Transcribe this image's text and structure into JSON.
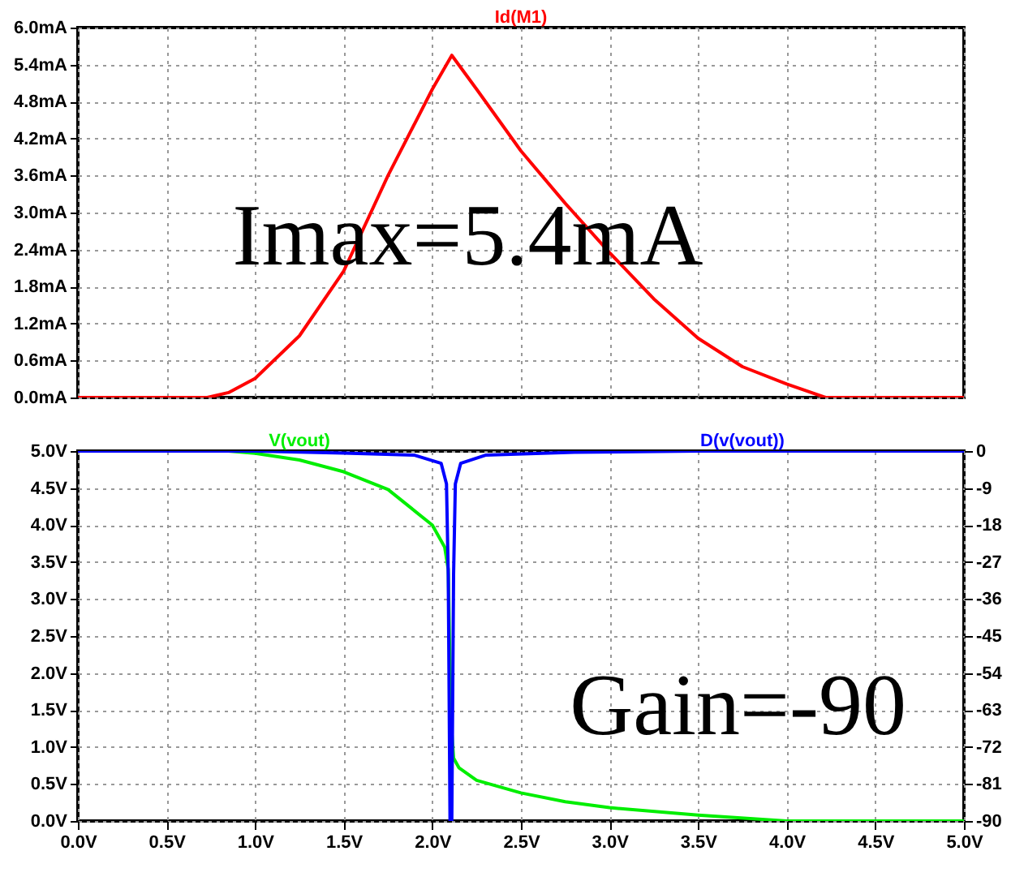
{
  "chart_data": [
    {
      "type": "line",
      "title": null,
      "annotations": [
        "Imax=5.4mA"
      ],
      "xlim": [
        0,
        5
      ],
      "xticks": [
        0,
        0.5,
        1,
        1.5,
        2,
        2.5,
        3,
        3.5,
        4,
        4.5,
        5
      ],
      "ylim": [
        0,
        6
      ],
      "yticks": [
        {
          "value": 0,
          "label": "0.0mA"
        },
        {
          "value": 0.6,
          "label": "0.6mA"
        },
        {
          "value": 1.2,
          "label": "1.2mA"
        },
        {
          "value": 1.8,
          "label": "1.8mA"
        },
        {
          "value": 2.4,
          "label": "2.4mA"
        },
        {
          "value": 3,
          "label": "3.0mA"
        },
        {
          "value": 3.6,
          "label": "3.6mA"
        },
        {
          "value": 4.2,
          "label": "4.2mA"
        },
        {
          "value": 4.8,
          "label": "4.8mA"
        },
        {
          "value": 5.4,
          "label": "5.4mA"
        },
        {
          "value": 6,
          "label": "6.0mA"
        }
      ],
      "tick_labels": "y",
      "grid": true,
      "line_style": "solid",
      "series": [
        {
          "name": "Id(M1)",
          "color": "#ff0000",
          "x": [
            0,
            0.5,
            0.73,
            0.85,
            1.0,
            1.25,
            1.5,
            1.75,
            2.0,
            2.11,
            2.25,
            2.5,
            2.75,
            3.0,
            3.25,
            3.5,
            3.75,
            4.0,
            4.22,
            4.5,
            5.0
          ],
          "values": [
            0,
            0,
            0,
            0.08,
            0.31,
            1.0,
            2.05,
            3.6,
            5.0,
            5.55,
            5.0,
            4.0,
            3.15,
            2.35,
            1.6,
            0.96,
            0.5,
            0.22,
            0,
            0,
            0
          ]
        }
      ]
    },
    {
      "type": "line",
      "annotations": [
        "Gain=-90"
      ],
      "xlim": [
        0,
        5
      ],
      "xticks": [
        {
          "value": 0,
          "label": "0.0V"
        },
        {
          "value": 0.5,
          "label": "0.5V"
        },
        {
          "value": 1,
          "label": "1.0V"
        },
        {
          "value": 1.5,
          "label": "1.5V"
        },
        {
          "value": 2,
          "label": "2.0V"
        },
        {
          "value": 2.5,
          "label": "2.5V"
        },
        {
          "value": 3,
          "label": "3.0V"
        },
        {
          "value": 3.5,
          "label": "3.5V"
        },
        {
          "value": 4,
          "label": "4.0V"
        },
        {
          "value": 4.5,
          "label": "4.5V"
        },
        {
          "value": 5,
          "label": "5.0V"
        }
      ],
      "ylim": [
        0,
        5
      ],
      "yticks": [
        {
          "value": 0,
          "label": "0.0V"
        },
        {
          "value": 0.5,
          "label": "0.5V"
        },
        {
          "value": 1,
          "label": "1.0V"
        },
        {
          "value": 1.5,
          "label": "1.5V"
        },
        {
          "value": 2,
          "label": "2.0V"
        },
        {
          "value": 2.5,
          "label": "2.5V"
        },
        {
          "value": 3,
          "label": "3.0V"
        },
        {
          "value": 3.5,
          "label": "3.5V"
        },
        {
          "value": 4,
          "label": "4.0V"
        },
        {
          "value": 4.5,
          "label": "4.5V"
        },
        {
          "value": 5,
          "label": "5.0V"
        }
      ],
      "y2lim": [
        -90,
        0
      ],
      "y2ticks": [
        -90,
        -81,
        -72,
        -63,
        -54,
        -45,
        -36,
        -27,
        -18,
        -9,
        0
      ],
      "grid": true,
      "line_style": "solid",
      "series": [
        {
          "name": "V(vout)",
          "color": "#00ee00",
          "x": [
            0,
            0.85,
            1.0,
            1.25,
            1.5,
            1.75,
            2.0,
            2.07,
            2.09,
            2.1,
            2.11,
            2.12,
            2.15,
            2.25,
            2.5,
            2.75,
            3.0,
            3.5,
            4.0,
            5.0
          ],
          "values": [
            5,
            5,
            4.97,
            4.88,
            4.72,
            4.48,
            4.0,
            3.7,
            3.4,
            2.0,
            1.2,
            0.85,
            0.72,
            0.55,
            0.38,
            0.26,
            0.18,
            0.08,
            0,
            0
          ]
        },
        {
          "name": "D(v(vout))",
          "color": "#0000ff",
          "axis": "y2",
          "x": [
            0,
            1.0,
            1.5,
            1.9,
            2.05,
            2.08,
            2.09,
            2.1,
            2.11,
            2.12,
            2.13,
            2.16,
            2.3,
            2.8,
            3.5,
            5.0
          ],
          "values": [
            0,
            0,
            -0.5,
            -1,
            -3,
            -8,
            -30,
            -90,
            -90,
            -30,
            -8,
            -3,
            -1,
            -0.3,
            0,
            0
          ]
        }
      ]
    }
  ]
}
